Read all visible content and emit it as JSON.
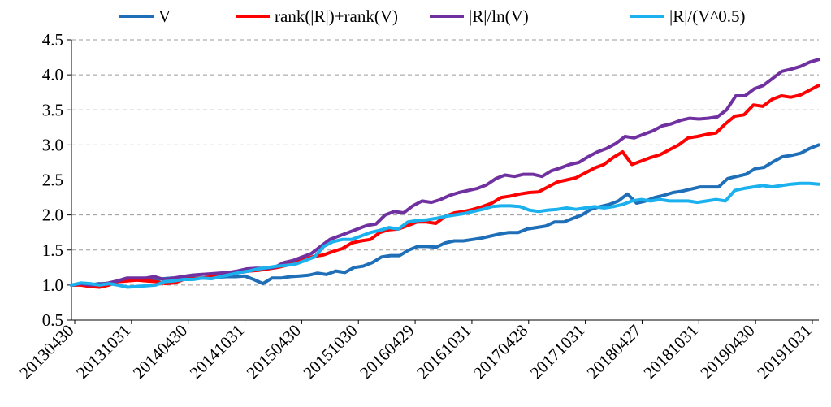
{
  "chart_data": {
    "type": "line",
    "x_ticks": [
      "20130430",
      "20131031",
      "20140430",
      "20141031",
      "20150430",
      "20151030",
      "20160429",
      "20161031",
      "20170428",
      "20171031",
      "20180427",
      "20181031",
      "20190430",
      "20191031"
    ],
    "ylim": [
      0.5,
      4.5
    ],
    "y_ticks": [
      "0.5",
      "1.0",
      "1.5",
      "2.0",
      "2.5",
      "3.0",
      "3.5",
      "4.0",
      "4.5"
    ],
    "grid": true,
    "legend_position": "top",
    "series": [
      {
        "name": "V",
        "color": "#1f6fb8",
        "values": [
          1.0,
          1.01,
          1.0,
          1.02,
          1.02,
          1.05,
          1.08,
          1.08,
          1.08,
          1.07,
          1.09,
          1.1,
          1.1,
          1.1,
          1.1,
          1.1,
          1.11,
          1.12,
          1.12,
          1.13,
          1.08,
          1.02,
          1.1,
          1.1,
          1.12,
          1.13,
          1.14,
          1.17,
          1.15,
          1.2,
          1.18,
          1.25,
          1.27,
          1.32,
          1.4,
          1.42,
          1.42,
          1.5,
          1.55,
          1.55,
          1.54,
          1.6,
          1.63,
          1.63,
          1.65,
          1.67,
          1.7,
          1.73,
          1.75,
          1.75,
          1.8,
          1.82,
          1.84,
          1.9,
          1.9,
          1.95,
          2.0,
          2.08,
          2.12,
          2.15,
          2.2,
          2.3,
          2.17,
          2.2,
          2.25,
          2.28,
          2.32,
          2.34,
          2.37,
          2.4,
          2.4,
          2.4,
          2.52,
          2.55,
          2.58,
          2.66,
          2.68,
          2.76,
          2.83,
          2.85,
          2.88,
          2.95,
          3.0
        ]
      },
      {
        "name": "rank(|R|)+rank(V)",
        "color": "#ff0000",
        "values": [
          1.0,
          1.0,
          0.98,
          0.97,
          1.0,
          1.05,
          1.06,
          1.07,
          1.06,
          1.05,
          1.02,
          1.03,
          1.08,
          1.09,
          1.1,
          1.12,
          1.14,
          1.16,
          1.18,
          1.2,
          1.21,
          1.23,
          1.25,
          1.28,
          1.33,
          1.37,
          1.41,
          1.43,
          1.48,
          1.52,
          1.6,
          1.63,
          1.65,
          1.75,
          1.79,
          1.8,
          1.85,
          1.9,
          1.9,
          1.88,
          1.98,
          2.03,
          2.05,
          2.08,
          2.12,
          2.17,
          2.25,
          2.27,
          2.3,
          2.32,
          2.33,
          2.4,
          2.47,
          2.5,
          2.53,
          2.6,
          2.67,
          2.72,
          2.82,
          2.9,
          2.72,
          2.77,
          2.82,
          2.86,
          2.93,
          3.0,
          3.1,
          3.12,
          3.15,
          3.17,
          3.3,
          3.41,
          3.43,
          3.57,
          3.55,
          3.65,
          3.7,
          3.68,
          3.71,
          3.78,
          3.85
        ]
      },
      {
        "name": "|R|/ln(V)",
        "color": "#7030a0",
        "values": [
          1.0,
          1.02,
          1.0,
          1.01,
          1.03,
          1.06,
          1.1,
          1.1,
          1.1,
          1.12,
          1.08,
          1.1,
          1.12,
          1.14,
          1.15,
          1.16,
          1.17,
          1.18,
          1.2,
          1.23,
          1.24,
          1.24,
          1.25,
          1.32,
          1.35,
          1.4,
          1.45,
          1.55,
          1.65,
          1.7,
          1.75,
          1.8,
          1.85,
          1.87,
          2.0,
          2.05,
          2.03,
          2.13,
          2.2,
          2.18,
          2.22,
          2.28,
          2.32,
          2.35,
          2.38,
          2.43,
          2.52,
          2.57,
          2.55,
          2.58,
          2.58,
          2.55,
          2.63,
          2.67,
          2.72,
          2.75,
          2.83,
          2.9,
          2.95,
          3.02,
          3.12,
          3.1,
          3.15,
          3.2,
          3.27,
          3.3,
          3.35,
          3.38,
          3.37,
          3.38,
          3.4,
          3.5,
          3.7,
          3.7,
          3.8,
          3.85,
          3.95,
          4.05,
          4.08,
          4.12,
          4.18,
          4.22
        ]
      },
      {
        "name": "|R|/(V^0.5)",
        "color": "#1ab1ee",
        "values": [
          1.0,
          1.03,
          1.02,
          1.0,
          1.02,
          1.0,
          0.97,
          0.98,
          0.99,
          1.0,
          1.05,
          1.06,
          1.08,
          1.08,
          1.1,
          1.09,
          1.12,
          1.15,
          1.18,
          1.2,
          1.23,
          1.25,
          1.27,
          1.28,
          1.3,
          1.35,
          1.4,
          1.55,
          1.62,
          1.65,
          1.65,
          1.7,
          1.75,
          1.78,
          1.82,
          1.8,
          1.9,
          1.92,
          1.93,
          1.95,
          1.98,
          2.0,
          2.02,
          2.05,
          2.08,
          2.12,
          2.13,
          2.13,
          2.12,
          2.07,
          2.05,
          2.07,
          2.08,
          2.1,
          2.08,
          2.1,
          2.12,
          2.1,
          2.12,
          2.15,
          2.2,
          2.22,
          2.2,
          2.22,
          2.2,
          2.2,
          2.2,
          2.18,
          2.2,
          2.22,
          2.2,
          2.35,
          2.38,
          2.4,
          2.42,
          2.4,
          2.42,
          2.44,
          2.45,
          2.45,
          2.44
        ]
      }
    ]
  }
}
